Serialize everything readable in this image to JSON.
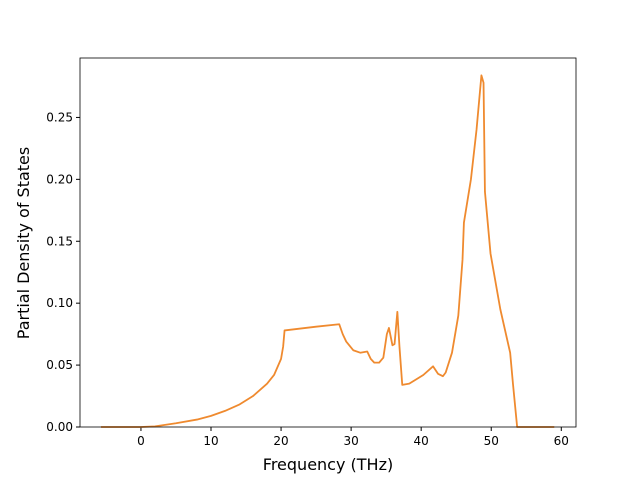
{
  "chart_data": {
    "type": "line",
    "xlabel": "Frequency (THz)",
    "ylabel": "Partial Density of States",
    "color": "#ef8a2f",
    "x": [
      -5.7,
      0,
      2,
      5,
      8,
      10,
      12,
      14,
      16,
      18,
      19,
      20,
      20.3,
      20.5,
      22,
      25,
      28.3,
      28.8,
      29.3,
      30.3,
      31.3,
      32.3,
      32.8,
      33.3,
      34,
      34.6,
      35.1,
      35.4,
      35.9,
      36.2,
      36.6,
      36.9,
      37.3,
      38.3,
      40.3,
      41.7,
      42.4,
      43.1,
      43.5,
      44.4,
      45.3,
      45.9,
      46.1,
      47.1,
      47.9,
      48.6,
      48.9,
      49.1,
      49.9,
      51.3,
      52.7,
      53.1,
      53.7,
      59.0
    ],
    "values": [
      0,
      0,
      0.0005,
      0.003,
      0.006,
      0.009,
      0.013,
      0.018,
      0.025,
      0.035,
      0.042,
      0.055,
      0.065,
      0.078,
      0.079,
      0.081,
      0.083,
      0.075,
      0.069,
      0.062,
      0.06,
      0.061,
      0.055,
      0.052,
      0.052,
      0.056,
      0.075,
      0.08,
      0.066,
      0.067,
      0.093,
      0.065,
      0.034,
      0.035,
      0.042,
      0.049,
      0.043,
      0.041,
      0.044,
      0.06,
      0.09,
      0.135,
      0.165,
      0.2,
      0.24,
      0.284,
      0.278,
      0.19,
      0.14,
      0.095,
      0.06,
      0.035,
      0,
      0
    ],
    "xlim": [
      -8.7,
      62.1
    ],
    "ylim": [
      0,
      0.298
    ],
    "xticks": [
      0,
      10,
      20,
      30,
      40,
      50,
      60
    ],
    "yticks": [
      {
        "value": 0,
        "label": "0.00"
      },
      0.05,
      {
        "value": 0.1,
        "label": "0.10"
      },
      0.15,
      {
        "value": 0.2,
        "label": "0.20"
      },
      0.25
    ],
    "grid": false
  }
}
